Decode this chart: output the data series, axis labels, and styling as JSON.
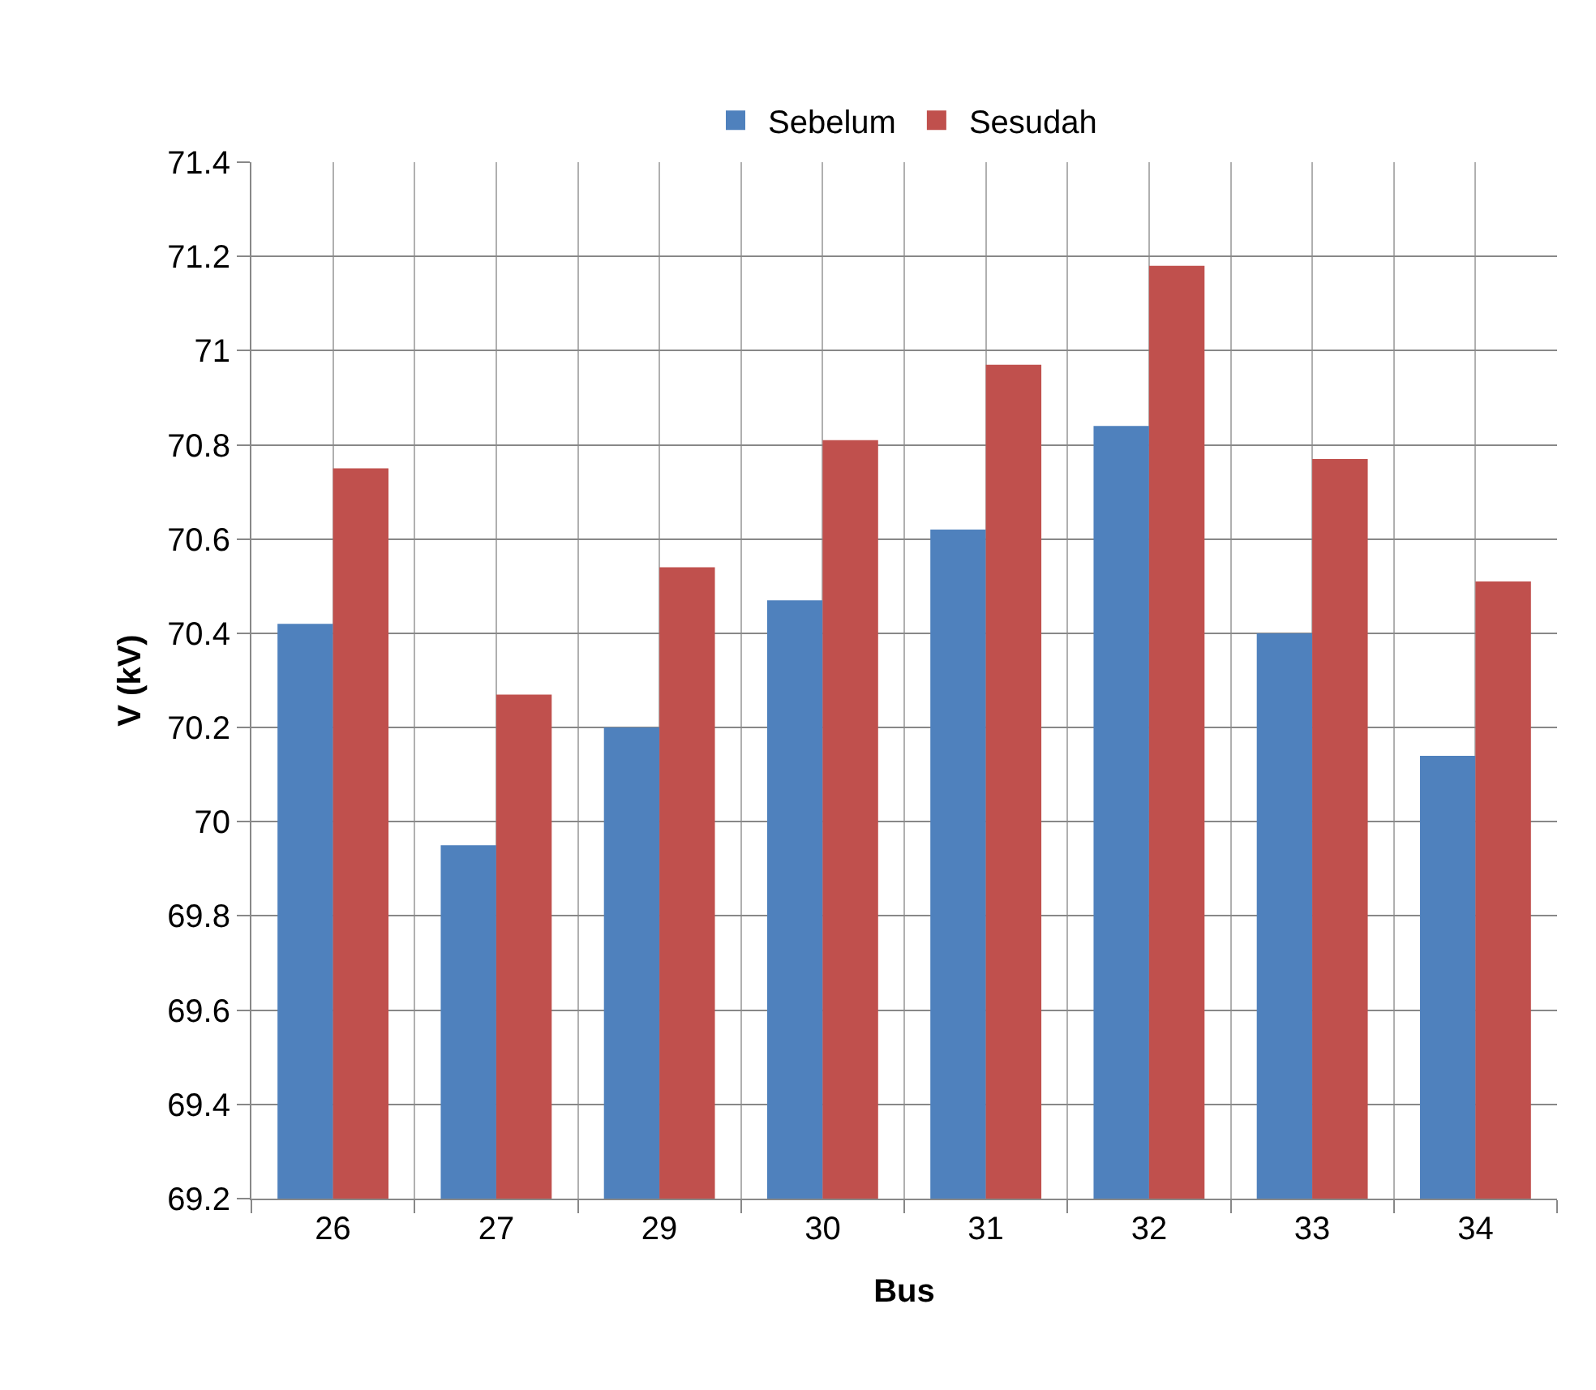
{
  "chart_data": {
    "type": "bar",
    "xlabel": "Bus",
    "ylabel": "V (kV)",
    "categories": [
      "26",
      "27",
      "29",
      "30",
      "31",
      "32",
      "33",
      "34"
    ],
    "series": [
      {
        "name": "Sebelum",
        "color": "#4f81bd",
        "values": [
          70.42,
          69.95,
          70.2,
          70.47,
          70.62,
          70.84,
          70.4,
          70.14
        ]
      },
      {
        "name": "Sesudah",
        "color": "#c0504d",
        "values": [
          70.75,
          70.27,
          70.54,
          70.81,
          70.97,
          71.18,
          70.77,
          70.51
        ]
      }
    ],
    "ylim": [
      69.2,
      71.4
    ],
    "yticks": [
      69.2,
      69.4,
      69.6,
      69.8,
      70,
      70.2,
      70.4,
      70.6,
      70.8,
      71,
      71.2,
      71.4
    ],
    "grid": true,
    "legend": "top"
  }
}
